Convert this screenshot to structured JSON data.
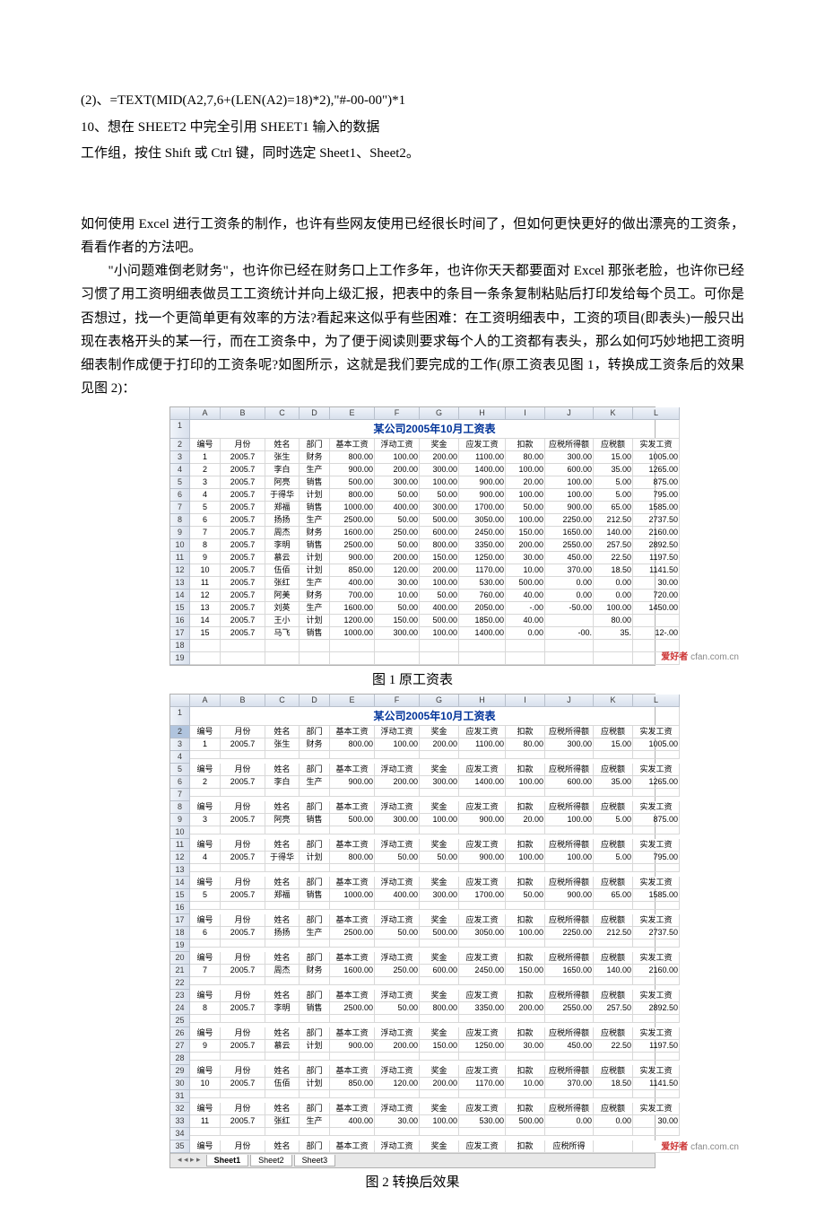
{
  "top_text": {
    "l1": "(2)、=TEXT(MID(A2,7,6+(LEN(A2)=18)*2),\"#-00-00\")*1",
    "l2": "10、想在 SHEET2 中完全引用 SHEET1 输入的数据",
    "l3": "工作组，按住 Shift 或 Ctrl 键，同时选定 Sheet1、Sheet2。"
  },
  "body": {
    "p1": "如何使用 Excel 进行工资条的制作，也许有些网友使用已经很长时间了，但如何更快更好的做出漂亮的工资条，看看作者的方法吧。",
    "p2": "　　\"小问题难倒老财务\"，也许你已经在财务口上工作多年，也许你天天都要面对 Excel 那张老脸，也许你已经习惯了用工资明细表做员工工资统计并向上级汇报，把表中的条目一条条复制粘贴后打印发给每个员工。可你是否想过，找一个更简单更有效率的方法?看起来这似乎有些困难：在工资明细表中，工资的项目(即表头)一般只出现在表格开头的某一行，而在工资条中，为了便于阅读则要求每个人的工资都有表头，那么如何巧妙地把工资明细表制作成便于打印的工资条呢?如图所示，这就是我们要完成的工作(原工资表见图 1，转换成工资条后的效果见图 2)："
  },
  "captions": {
    "fig1": "图 1  原工资表",
    "fig2": "图 2  转换后效果"
  },
  "excel_cols": [
    "A",
    "B",
    "C",
    "D",
    "E",
    "F",
    "G",
    "H",
    "I",
    "J",
    "K",
    "L"
  ],
  "sheet_title": "某公司2005年10月工资表",
  "headers": [
    "编号",
    "月份",
    "姓名",
    "部门",
    "基本工资",
    "浮动工资",
    "奖金",
    "应发工资",
    "扣款",
    "应税所得额",
    "应税额",
    "实发工资"
  ],
  "fig1_rows": [
    [
      "1",
      "2005.7",
      "张生",
      "财务",
      "800.00",
      "100.00",
      "200.00",
      "1100.00",
      "80.00",
      "300.00",
      "15.00",
      "1005.00"
    ],
    [
      "2",
      "2005.7",
      "李白",
      "生产",
      "900.00",
      "200.00",
      "300.00",
      "1400.00",
      "100.00",
      "600.00",
      "35.00",
      "1265.00"
    ],
    [
      "3",
      "2005.7",
      "阿亮",
      "销售",
      "500.00",
      "300.00",
      "100.00",
      "900.00",
      "20.00",
      "100.00",
      "5.00",
      "875.00"
    ],
    [
      "4",
      "2005.7",
      "于得华",
      "计划",
      "800.00",
      "50.00",
      "50.00",
      "900.00",
      "100.00",
      "100.00",
      "5.00",
      "795.00"
    ],
    [
      "5",
      "2005.7",
      "郑福",
      "销售",
      "1000.00",
      "400.00",
      "300.00",
      "1700.00",
      "50.00",
      "900.00",
      "65.00",
      "1585.00"
    ],
    [
      "6",
      "2005.7",
      "扬扬",
      "生产",
      "2500.00",
      "50.00",
      "500.00",
      "3050.00",
      "100.00",
      "2250.00",
      "212.50",
      "2737.50"
    ],
    [
      "7",
      "2005.7",
      "周杰",
      "财务",
      "1600.00",
      "250.00",
      "600.00",
      "2450.00",
      "150.00",
      "1650.00",
      "140.00",
      "2160.00"
    ],
    [
      "8",
      "2005.7",
      "李明",
      "销售",
      "2500.00",
      "50.00",
      "800.00",
      "3350.00",
      "200.00",
      "2550.00",
      "257.50",
      "2892.50"
    ],
    [
      "9",
      "2005.7",
      "慕云",
      "计划",
      "900.00",
      "200.00",
      "150.00",
      "1250.00",
      "30.00",
      "450.00",
      "22.50",
      "1197.50"
    ],
    [
      "10",
      "2005.7",
      "伍佰",
      "计划",
      "850.00",
      "120.00",
      "200.00",
      "1170.00",
      "10.00",
      "370.00",
      "18.50",
      "1141.50"
    ],
    [
      "11",
      "2005.7",
      "张红",
      "生产",
      "400.00",
      "30.00",
      "100.00",
      "530.00",
      "500.00",
      "0.00",
      "0.00",
      "30.00"
    ],
    [
      "12",
      "2005.7",
      "阿美",
      "财务",
      "700.00",
      "10.00",
      "50.00",
      "760.00",
      "40.00",
      "0.00",
      "0.00",
      "720.00"
    ],
    [
      "13",
      "2005.7",
      "刘英",
      "生产",
      "1600.00",
      "50.00",
      "400.00",
      "2050.00",
      "-.00",
      "-50.00",
      "100.00",
      "1450.00"
    ],
    [
      "14",
      "2005.7",
      "王小",
      "计划",
      "1200.00",
      "150.00",
      "500.00",
      "1850.00",
      "40.00",
      "",
      "80.00",
      ""
    ],
    [
      "15",
      "2005.7",
      "马飞",
      "销售",
      "1000.00",
      "300.00",
      "100.00",
      "1400.00",
      "0.00",
      "-00.",
      "35.",
      "12-.00"
    ]
  ],
  "fig2_rows_idx": [
    0,
    1,
    2,
    3,
    4,
    5,
    6,
    7,
    8,
    9,
    10
  ],
  "watermark_text": "cfan.com.cn",
  "watermark_badge": "爱好者",
  "sheet_tabs": [
    "Sheet1",
    "Sheet2",
    "Sheet3"
  ],
  "colors": {
    "title_blue": "#003399",
    "header_grad_top": "#f0f4fa",
    "header_grad_bot": "#d8e0ec",
    "grid_border": "#d8d8d8"
  }
}
